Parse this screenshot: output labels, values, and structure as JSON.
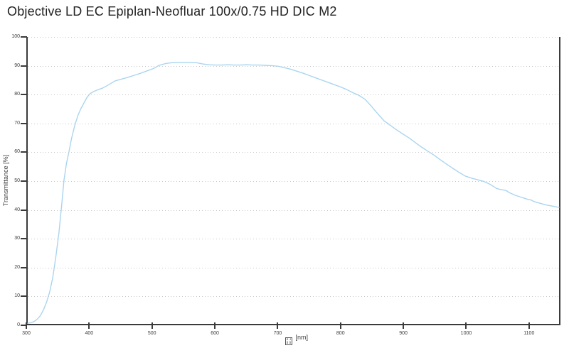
{
  "chart_data": {
    "type": "line",
    "title": "Objective LD EC Epiplan-Neofluar 100x/0.75 HD DIC M2",
    "ylabel": "Transmittance [%]",
    "xlabel_unit": "[nm]",
    "xlabel_missing_glyph_hex": "03BB",
    "xlim": [
      300,
      1150
    ],
    "ylim": [
      0,
      100
    ],
    "x_ticks": [
      300,
      400,
      500,
      600,
      700,
      800,
      900,
      1000,
      1100
    ],
    "y_ticks": [
      0,
      10,
      20,
      30,
      40,
      50,
      60,
      70,
      80,
      90,
      100
    ],
    "grid": "horizontal-dotted",
    "legend": "none",
    "series": [
      {
        "name": "Transmittance",
        "color": "#a9d5f0",
        "points": [
          [
            300,
            0.2
          ],
          [
            305,
            0.4
          ],
          [
            310,
            0.8
          ],
          [
            315,
            1.6
          ],
          [
            320,
            2.8
          ],
          [
            325,
            4.8
          ],
          [
            330,
            7.5
          ],
          [
            335,
            11
          ],
          [
            340,
            16
          ],
          [
            345,
            23.5
          ],
          [
            350,
            32
          ],
          [
            355,
            43
          ],
          [
            358,
            50
          ],
          [
            362,
            56
          ],
          [
            366,
            60
          ],
          [
            370,
            64.5
          ],
          [
            375,
            69
          ],
          [
            380,
            72.5
          ],
          [
            385,
            75
          ],
          [
            390,
            77
          ],
          [
            395,
            79
          ],
          [
            400,
            80.3
          ],
          [
            405,
            80.9
          ],
          [
            410,
            81.4
          ],
          [
            415,
            81.8
          ],
          [
            420,
            82.2
          ],
          [
            430,
            83.4
          ],
          [
            440,
            84.7
          ],
          [
            450,
            85.3
          ],
          [
            460,
            85.9
          ],
          [
            470,
            86.6
          ],
          [
            480,
            87.3
          ],
          [
            490,
            88.1
          ],
          [
            500,
            88.9
          ],
          [
            505,
            89.4
          ],
          [
            510,
            90.1
          ],
          [
            515,
            90.4
          ],
          [
            520,
            90.7
          ],
          [
            530,
            91.0
          ],
          [
            540,
            91.1
          ],
          [
            550,
            91.1
          ],
          [
            560,
            91.1
          ],
          [
            570,
            91.0
          ],
          [
            580,
            90.6
          ],
          [
            590,
            90.3
          ],
          [
            600,
            90.2
          ],
          [
            610,
            90.2
          ],
          [
            620,
            90.3
          ],
          [
            630,
            90.2
          ],
          [
            640,
            90.2
          ],
          [
            650,
            90.3
          ],
          [
            660,
            90.2
          ],
          [
            670,
            90.2
          ],
          [
            680,
            90.1
          ],
          [
            690,
            90.0
          ],
          [
            700,
            89.8
          ],
          [
            710,
            89.3
          ],
          [
            720,
            88.8
          ],
          [
            730,
            88.1
          ],
          [
            740,
            87.4
          ],
          [
            750,
            86.6
          ],
          [
            760,
            85.8
          ],
          [
            770,
            85.0
          ],
          [
            780,
            84.2
          ],
          [
            790,
            83.4
          ],
          [
            800,
            82.6
          ],
          [
            810,
            81.7
          ],
          [
            820,
            80.6
          ],
          [
            830,
            79.6
          ],
          [
            840,
            78.2
          ],
          [
            845,
            77.0
          ],
          [
            850,
            75.8
          ],
          [
            860,
            73.2
          ],
          [
            870,
            70.8
          ],
          [
            875,
            70.0
          ],
          [
            880,
            69.2
          ],
          [
            890,
            67.6
          ],
          [
            900,
            66.2
          ],
          [
            910,
            64.8
          ],
          [
            920,
            63.2
          ],
          [
            930,
            61.6
          ],
          [
            940,
            60.2
          ],
          [
            950,
            58.8
          ],
          [
            960,
            57.2
          ],
          [
            970,
            55.7
          ],
          [
            980,
            54.2
          ],
          [
            990,
            52.8
          ],
          [
            1000,
            51.5
          ],
          [
            1010,
            50.8
          ],
          [
            1020,
            50.2
          ],
          [
            1030,
            49.6
          ],
          [
            1040,
            48.6
          ],
          [
            1050,
            47.2
          ],
          [
            1055,
            46.9
          ],
          [
            1065,
            46.5
          ],
          [
            1070,
            45.8
          ],
          [
            1080,
            44.8
          ],
          [
            1090,
            44.1
          ],
          [
            1100,
            43.4
          ],
          [
            1105,
            43.2
          ],
          [
            1110,
            42.6
          ],
          [
            1120,
            42.0
          ],
          [
            1130,
            41.4
          ],
          [
            1140,
            41.0
          ],
          [
            1150,
            40.6
          ]
        ]
      }
    ]
  },
  "colors": {
    "axis": "#3b3b3b",
    "grid": "#c8c8c8",
    "tick_text": "#3d3d3d",
    "title_text": "#222222",
    "background": "#ffffff",
    "curve": "#a9d5f0"
  }
}
